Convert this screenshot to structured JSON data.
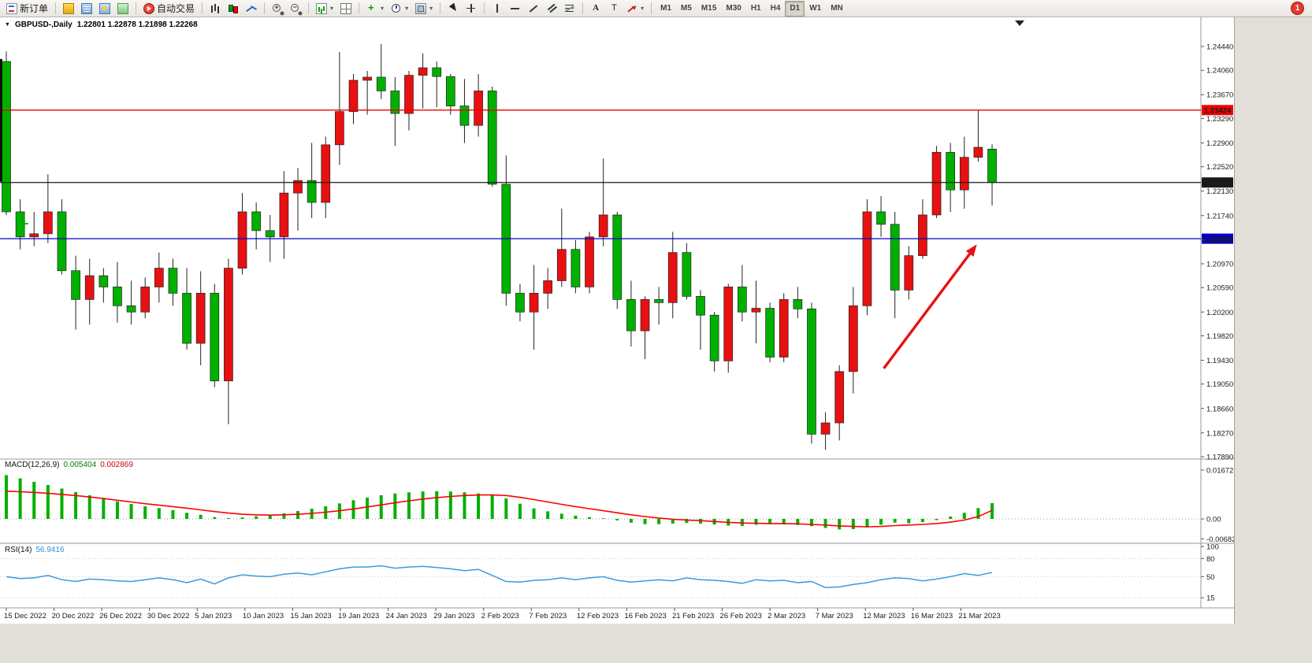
{
  "toolbar": {
    "new_order": "新订单",
    "auto_trading": "自动交易",
    "timeframes": [
      "M1",
      "M5",
      "M15",
      "M30",
      "H1",
      "H4",
      "D1",
      "W1",
      "MN"
    ],
    "active_timeframe": "D1",
    "notification_badge": "1",
    "icon_names": [
      "new-order-icon",
      "market-watch-icon",
      "data-window-icon",
      "navigator-icon",
      "terminal-icon",
      "auto-trading-icon",
      "bar-chart-icon",
      "candlestick-chart-icon",
      "line-chart-icon",
      "zoom-in-icon",
      "zoom-out-icon",
      "new-chart-icon",
      "tile-windows-icon",
      "add-indicator-icon",
      "periods-icon",
      "chart-template-icon",
      "cursor-icon",
      "crosshair-icon",
      "vertical-line-icon",
      "horizontal-line-icon",
      "trendline-icon",
      "channel-icon",
      "fibonacci-icon",
      "text-icon",
      "label-icon",
      "arrow-shapes-icon"
    ]
  },
  "chart_header": {
    "symbol_period": "GBPUSD-,Daily",
    "ohlc": "1.22801 1.22878 1.21898 1.22268"
  },
  "colors": {
    "bull": "#e81010",
    "bear": "#00b000",
    "macd_hist": "#00b000",
    "macd_signal": "#ff0000",
    "rsi_line": "#3a9ade",
    "arrow": "#e81010"
  },
  "price_axis": {
    "labels": [
      "1.24440",
      "1.24060",
      "1.23670",
      "1.23290",
      "1.22900",
      "1.22520",
      "1.22130",
      "1.21740",
      "1.21350",
      "1.20970",
      "1.20590",
      "1.20200",
      "1.19820",
      "1.19430",
      "1.19050",
      "1.18660",
      "1.18270",
      "1.17890"
    ]
  },
  "time_axis": {
    "labels": [
      "15 Dec 2022",
      "20 Dec 2022",
      "26 Dec 2022",
      "30 Dec 2022",
      "5 Jan 2023",
      "10 Jan 2023",
      "15 Jan 2023",
      "19 Jan 2023",
      "24 Jan 2023",
      "29 Jan 2023",
      "2 Feb 2023",
      "7 Feb 2023",
      "12 Feb 2023",
      "16 Feb 2023",
      "21 Feb 2023",
      "26 Feb 2023",
      "2 Mar 2023",
      "7 Mar 2023",
      "12 Mar 2023",
      "16 Mar 2023",
      "21 Mar 2023"
    ]
  },
  "hlines": [
    {
      "value": 1.23424,
      "label": "1.23424",
      "color": "#f00000"
    },
    {
      "value": 1.22268,
      "label": "1.22268",
      "color": "#1a1a1a"
    },
    {
      "value": 1.21371,
      "label": "1.21371",
      "color": "#0000cc"
    }
  ],
  "indicators": {
    "macd": {
      "label": "MACD(12,26,9)",
      "value_main": "0.005404",
      "value_signal": "0.002869",
      "axis_labels": [
        "0.016725",
        "0.00",
        "-0.006826"
      ],
      "histogram": [
        0.015,
        0.0139,
        0.0127,
        0.0116,
        0.0104,
        0.0092,
        0.0081,
        0.007,
        0.006,
        0.0051,
        0.0043,
        0.0037,
        0.003,
        0.0021,
        0.0014,
        0.0006,
        0.0003,
        0.0005,
        0.0009,
        0.0013,
        0.0019,
        0.0027,
        0.0035,
        0.0043,
        0.0053,
        0.0064,
        0.0073,
        0.0081,
        0.0087,
        0.0091,
        0.0094,
        0.0095,
        0.0094,
        0.0091,
        0.0087,
        0.0082,
        0.007,
        0.0052,
        0.0036,
        0.0026,
        0.0018,
        0.0011,
        0.0006,
        0.0002,
        -0.0005,
        -0.0013,
        -0.0018,
        -0.0018,
        -0.0016,
        -0.0014,
        -0.0016,
        -0.0019,
        -0.0023,
        -0.0024,
        -0.002,
        -0.0018,
        -0.0019,
        -0.0021,
        -0.0025,
        -0.0031,
        -0.0036,
        -0.0035,
        -0.0029,
        -0.002,
        -0.0013,
        -0.0015,
        -0.0011,
        -0.0004,
        0.0008,
        0.0021,
        0.0037,
        0.0054
      ],
      "signal": [
        0.0095,
        0.0093,
        0.0091,
        0.0088,
        0.0084,
        0.008,
        0.0075,
        0.007,
        0.0064,
        0.0058,
        0.0052,
        0.0047,
        0.0042,
        0.0037,
        0.0031,
        0.0025,
        0.002,
        0.0016,
        0.0014,
        0.0013,
        0.0014,
        0.0016,
        0.0019,
        0.0023,
        0.0028,
        0.0034,
        0.0041,
        0.0048,
        0.0055,
        0.0062,
        0.0068,
        0.0073,
        0.0077,
        0.008,
        0.0082,
        0.0082,
        0.008,
        0.0074,
        0.0066,
        0.0058,
        0.005,
        0.0042,
        0.0035,
        0.0028,
        0.0021,
        0.0014,
        0.0008,
        0.0003,
        -0.0001,
        -0.0004,
        -0.0006,
        -0.0009,
        -0.0012,
        -0.0014,
        -0.0015,
        -0.0016,
        -0.0016,
        -0.0017,
        -0.0019,
        -0.0021,
        -0.0024,
        -0.0026,
        -0.0027,
        -0.0026,
        -0.0023,
        -0.0021,
        -0.0019,
        -0.0016,
        -0.0011,
        -0.0004,
        0.0008,
        0.0029
      ]
    },
    "rsi": {
      "label": "RSI(14)",
      "value": "56.9416",
      "axis_labels": [
        "100",
        "80",
        "50",
        "15"
      ],
      "levels": [
        80,
        50,
        15
      ],
      "values": [
        50,
        47,
        48,
        52,
        45,
        42,
        46,
        45,
        43,
        42,
        45,
        48,
        45,
        40,
        46,
        38,
        48,
        53,
        51,
        50,
        54,
        56,
        53,
        58,
        63,
        66,
        66,
        68,
        64,
        66,
        67,
        65,
        63,
        60,
        62,
        52,
        42,
        41,
        44,
        45,
        48,
        45,
        48,
        50,
        44,
        41,
        43,
        45,
        43,
        48,
        45,
        44,
        42,
        39,
        45,
        43,
        44,
        40,
        42,
        32,
        33,
        37,
        40,
        45,
        48,
        47,
        43,
        46,
        50,
        55,
        52,
        56.94
      ]
    }
  },
  "annotations": {
    "edge_bar": {
      "price_high": 1.2424,
      "price_low": 1.2228
    },
    "plus_marker": {
      "index": 1.3,
      "price": 1.2161
    },
    "arrow": {
      "from_index": 63.2,
      "from_price": 1.193,
      "to_index": 69.9,
      "to_price": 1.2128
    }
  },
  "chart_data": {
    "type": "candlestick",
    "symbol": "GBPUSD-",
    "period": "Daily",
    "price_range": [
      1.1789,
      1.2444
    ],
    "dates": [
      "2022-12-15",
      "2022-12-16",
      "2022-12-19",
      "2022-12-20",
      "2022-12-21",
      "2022-12-22",
      "2022-12-23",
      "2022-12-26",
      "2022-12-27",
      "2022-12-28",
      "2022-12-29",
      "2022-12-30",
      "2023-01-02",
      "2023-01-03",
      "2023-01-04",
      "2023-01-05",
      "2023-01-06",
      "2023-01-09",
      "2023-01-10",
      "2023-01-11",
      "2023-01-12",
      "2023-01-13",
      "2023-01-16",
      "2023-01-17",
      "2023-01-18",
      "2023-01-19",
      "2023-01-20",
      "2023-01-23",
      "2023-01-24",
      "2023-01-25",
      "2023-01-26",
      "2023-01-27",
      "2023-01-30",
      "2023-01-31",
      "2023-02-01",
      "2023-02-02",
      "2023-02-03",
      "2023-02-06",
      "2023-02-07",
      "2023-02-08",
      "2023-02-09",
      "2023-02-10",
      "2023-02-13",
      "2023-02-14",
      "2023-02-15",
      "2023-02-16",
      "2023-02-17",
      "2023-02-20",
      "2023-02-21",
      "2023-02-22",
      "2023-02-23",
      "2023-02-24",
      "2023-02-27",
      "2023-02-28",
      "2023-03-01",
      "2023-03-02",
      "2023-03-03",
      "2023-03-06",
      "2023-03-07",
      "2023-03-08",
      "2023-03-09",
      "2023-03-10",
      "2023-03-13",
      "2023-03-14",
      "2023-03-15",
      "2023-03-16",
      "2023-03-17",
      "2023-03-20",
      "2023-03-21",
      "2023-03-22",
      "2023-03-23",
      "2023-03-24"
    ],
    "ohlc": [
      [
        1.242,
        1.2436,
        1.2175,
        1.218
      ],
      [
        1.218,
        1.22,
        1.212,
        1.214
      ],
      [
        1.214,
        1.218,
        1.2125,
        1.2145
      ],
      [
        1.2145,
        1.224,
        1.213,
        1.218
      ],
      [
        1.218,
        1.22,
        1.208,
        1.2086
      ],
      [
        1.2086,
        1.211,
        1.1992,
        1.204
      ],
      [
        1.204,
        1.2105,
        1.2,
        1.2078
      ],
      [
        1.2078,
        1.209,
        1.2035,
        1.206
      ],
      [
        1.206,
        1.21,
        1.2003,
        1.203
      ],
      [
        1.203,
        1.207,
        1.2,
        1.202
      ],
      [
        1.202,
        1.2075,
        1.201,
        1.206
      ],
      [
        1.206,
        1.2115,
        1.2035,
        1.209
      ],
      [
        1.209,
        1.2105,
        1.203,
        1.205
      ],
      [
        1.205,
        1.209,
        1.196,
        1.197
      ],
      [
        1.197,
        1.2085,
        1.1935,
        1.205
      ],
      [
        1.205,
        1.2065,
        1.19,
        1.191
      ],
      [
        1.191,
        1.2105,
        1.1841,
        1.209
      ],
      [
        1.209,
        1.221,
        1.208,
        1.218
      ],
      [
        1.218,
        1.2195,
        1.212,
        1.215
      ],
      [
        1.215,
        1.2175,
        1.21,
        1.214
      ],
      [
        1.214,
        1.2245,
        1.2105,
        1.221
      ],
      [
        1.221,
        1.225,
        1.215,
        1.223
      ],
      [
        1.223,
        1.229,
        1.217,
        1.2195
      ],
      [
        1.2195,
        1.23,
        1.217,
        1.2287
      ],
      [
        1.2287,
        1.2435,
        1.2255,
        1.234
      ],
      [
        1.234,
        1.24,
        1.232,
        1.239
      ],
      [
        1.239,
        1.2405,
        1.2335,
        1.2395
      ],
      [
        1.2395,
        1.2448,
        1.236,
        1.2373
      ],
      [
        1.2373,
        1.2395,
        1.2285,
        1.2337
      ],
      [
        1.2337,
        1.2405,
        1.231,
        1.2398
      ],
      [
        1.2398,
        1.2433,
        1.2345,
        1.241
      ],
      [
        1.241,
        1.242,
        1.2347,
        1.2396
      ],
      [
        1.2396,
        1.24,
        1.2335,
        1.2349
      ],
      [
        1.2349,
        1.2392,
        1.229,
        1.2318
      ],
      [
        1.2318,
        1.24,
        1.23,
        1.2373
      ],
      [
        1.2373,
        1.238,
        1.222,
        1.2224
      ],
      [
        1.2224,
        1.227,
        1.203,
        1.205
      ],
      [
        1.205,
        1.2065,
        1.2005,
        1.202
      ],
      [
        1.202,
        1.2095,
        1.196,
        1.205
      ],
      [
        1.205,
        1.209,
        1.2025,
        1.207
      ],
      [
        1.207,
        1.2185,
        1.206,
        1.212
      ],
      [
        1.212,
        1.2135,
        1.205,
        1.206
      ],
      [
        1.206,
        1.2148,
        1.205,
        1.214
      ],
      [
        1.214,
        1.2265,
        1.2125,
        1.2175
      ],
      [
        1.2175,
        1.218,
        1.2025,
        1.204
      ],
      [
        1.204,
        1.207,
        1.1965,
        1.199
      ],
      [
        1.199,
        1.2045,
        1.1945,
        1.204
      ],
      [
        1.204,
        1.206,
        1.2,
        1.2035
      ],
      [
        1.2035,
        1.2148,
        1.201,
        1.2115
      ],
      [
        1.2115,
        1.213,
        1.204,
        1.2045
      ],
      [
        1.2045,
        1.2055,
        1.196,
        1.2015
      ],
      [
        1.2015,
        1.202,
        1.1925,
        1.1942
      ],
      [
        1.1942,
        1.2065,
        1.1923,
        1.206
      ],
      [
        1.206,
        1.2095,
        1.2005,
        1.202
      ],
      [
        1.202,
        1.207,
        1.197,
        1.2026
      ],
      [
        1.2026,
        1.2035,
        1.194,
        1.1948
      ],
      [
        1.1948,
        1.205,
        1.194,
        1.204
      ],
      [
        1.204,
        1.206,
        1.201,
        1.2025
      ],
      [
        1.2025,
        1.2035,
        1.181,
        1.1825
      ],
      [
        1.1825,
        1.186,
        1.18,
        1.1843
      ],
      [
        1.1843,
        1.1935,
        1.1815,
        1.1925
      ],
      [
        1.1925,
        1.206,
        1.189,
        1.203
      ],
      [
        1.203,
        1.22,
        1.2015,
        1.218
      ],
      [
        1.218,
        1.2205,
        1.214,
        1.216
      ],
      [
        1.216,
        1.218,
        1.201,
        1.2055
      ],
      [
        1.2055,
        1.2125,
        1.204,
        1.211
      ],
      [
        1.211,
        1.22,
        1.2105,
        1.2175
      ],
      [
        1.2175,
        1.2285,
        1.217,
        1.2275
      ],
      [
        1.2275,
        1.229,
        1.218,
        1.2215
      ],
      [
        1.2215,
        1.23,
        1.2185,
        1.2267
      ],
      [
        1.2267,
        1.2343,
        1.226,
        1.2283
      ],
      [
        1.22801,
        1.22878,
        1.21898,
        1.22268
      ]
    ]
  }
}
